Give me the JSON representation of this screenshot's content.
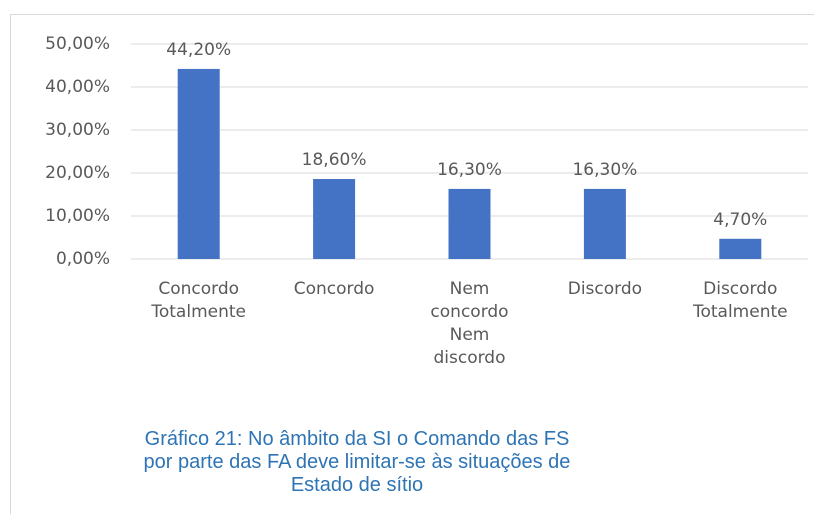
{
  "chart_data": {
    "type": "bar",
    "title": "Gráfico 21: No âmbito da SI o Comando das FS por parte das FA deve limitar-se às situações de Estado de sítio",
    "categories": [
      "Concordo Totalmente",
      "Concordo",
      "Nem concordo Nem discordo",
      "Discordo",
      "Discordo Totalmente"
    ],
    "values": [
      44.2,
      18.6,
      16.3,
      16.3,
      4.7
    ],
    "value_labels": [
      "44,20%",
      "18,60%",
      "16,30%",
      "16,30%",
      "4,70%"
    ],
    "color": "#4472c4",
    "ylim": [
      0,
      50
    ],
    "yticks": [
      {
        "value": 0,
        "label": "0,00%"
      },
      {
        "value": 10,
        "label": "10,00%"
      },
      {
        "value": 20,
        "label": "20,00%"
      },
      {
        "value": 30,
        "label": "30,00%"
      },
      {
        "value": 40,
        "label": "40,00%"
      },
      {
        "value": 50,
        "label": "50,00%"
      }
    ],
    "grid": true
  }
}
